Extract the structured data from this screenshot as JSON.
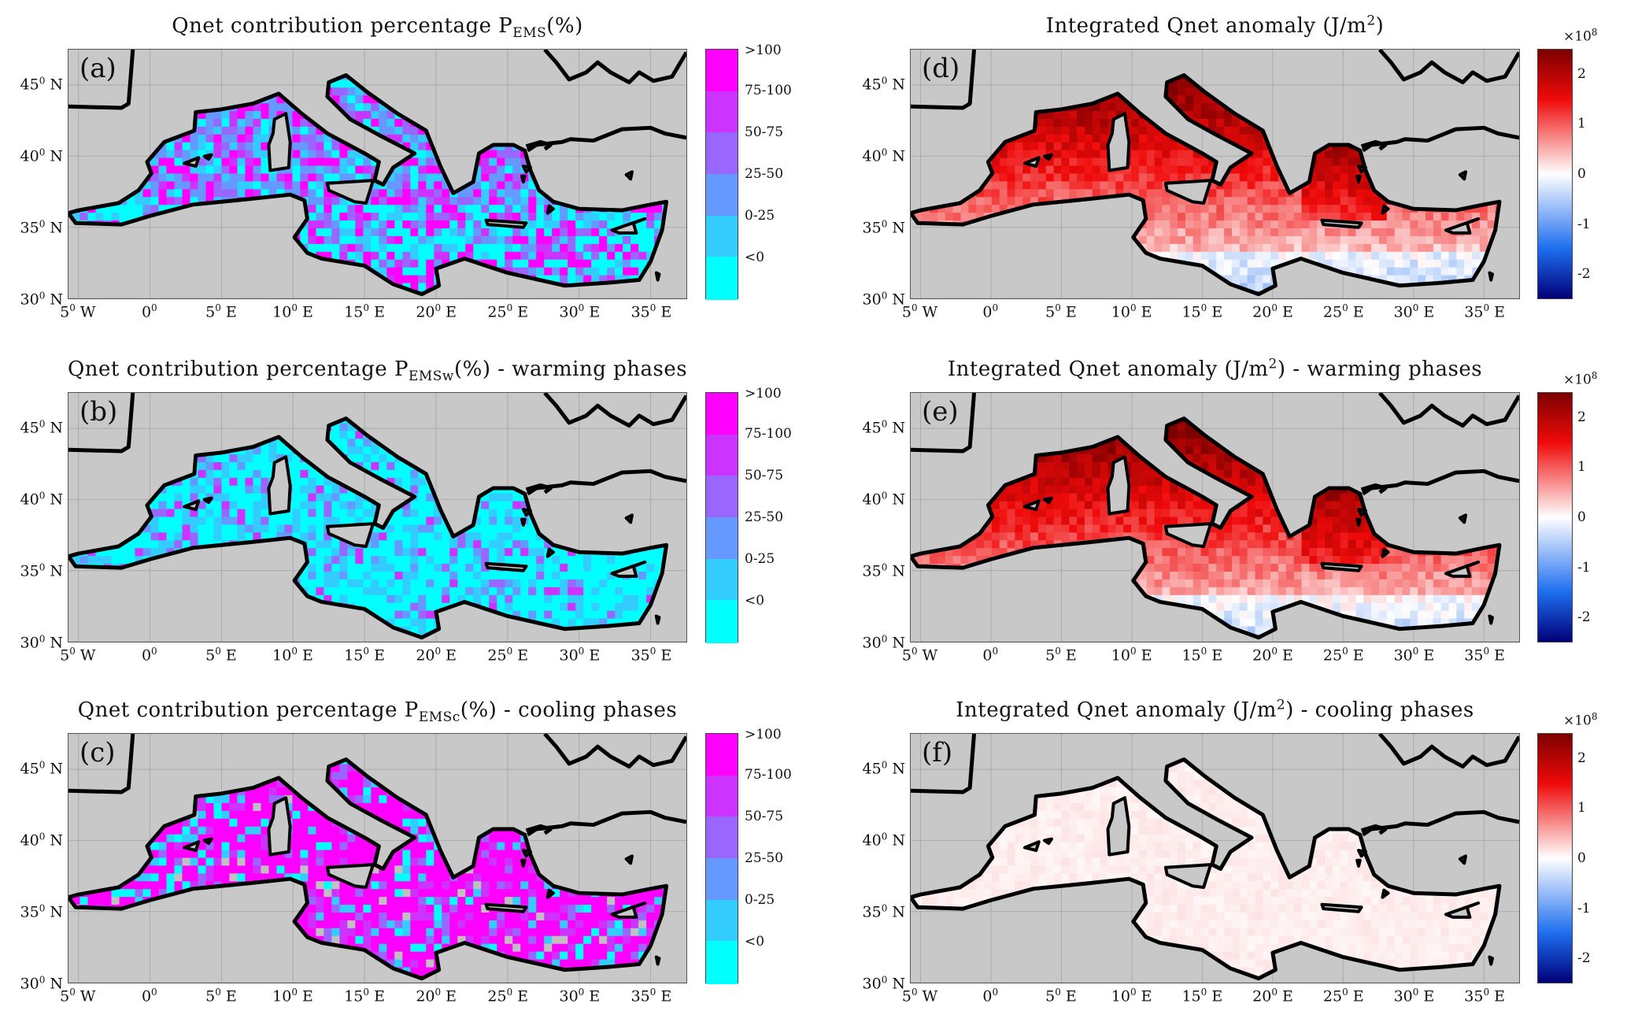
{
  "lon_ticks": [
    {
      "deg": "5",
      "hem": "W",
      "value": -5
    },
    {
      "deg": "0",
      "hem": "",
      "value": 0
    },
    {
      "deg": "5",
      "hem": "E",
      "value": 5
    },
    {
      "deg": "10",
      "hem": "E",
      "value": 10
    },
    {
      "deg": "15",
      "hem": "E",
      "value": 15
    },
    {
      "deg": "20",
      "hem": "E",
      "value": 20
    },
    {
      "deg": "25",
      "hem": "E",
      "value": 25
    },
    {
      "deg": "30",
      "hem": "E",
      "value": 30
    },
    {
      "deg": "35",
      "hem": "E",
      "value": 35
    }
  ],
  "lat_ticks": [
    {
      "deg": "30",
      "hem": "N",
      "value": 30
    },
    {
      "deg": "35",
      "hem": "N",
      "value": 35
    },
    {
      "deg": "40",
      "hem": "N",
      "value": 40
    },
    {
      "deg": "45",
      "hem": "N",
      "value": 45
    }
  ],
  "degree_symbol": "0",
  "extent": {
    "lon": [
      -5.7,
      37.5
    ],
    "lat": [
      30,
      47.5
    ]
  },
  "percent_colorbar": {
    "labels": [
      ">100",
      "75-100",
      "50-75",
      "25-50",
      "0-25",
      "<0"
    ],
    "colors": [
      "#ff00ff",
      "#cc33ff",
      "#9966ff",
      "#6699ff",
      "#33ccff",
      "#00ffff"
    ]
  },
  "anomaly_colorbar": {
    "ticks": [
      {
        "label": "2",
        "value": 2
      },
      {
        "label": "1",
        "value": 1
      },
      {
        "label": "0",
        "value": 0
      },
      {
        "label": "-1",
        "value": -1
      },
      {
        "label": "-2",
        "value": -2
      }
    ],
    "range": [
      -2.5,
      2.5
    ],
    "exponent_base": "×10",
    "exponent": "8"
  },
  "panels": [
    {
      "id": "a",
      "letter": "(a)",
      "kind": "pct",
      "mode": "all",
      "title": {
        "pre": "Qnet contribution percentage P",
        "sub": "EMS",
        "post": "(%)"
      }
    },
    {
      "id": "b",
      "letter": "(b)",
      "kind": "pct",
      "mode": "warm",
      "title": {
        "pre": "Qnet contribution percentage P",
        "sub": "EMSw",
        "post": "(%) - warming phases"
      }
    },
    {
      "id": "c",
      "letter": "(c)",
      "kind": "pct",
      "mode": "cool",
      "title": {
        "pre": "Qnet contribution percentage P",
        "sub": "EMSc",
        "post": "(%) - cooling phases"
      }
    },
    {
      "id": "d",
      "letter": "(d)",
      "kind": "anom",
      "mode": "all",
      "title": {
        "pre": "Integrated Qnet anomaly (J/m",
        "sup": "2",
        "post": ")"
      }
    },
    {
      "id": "e",
      "letter": "(e)",
      "kind": "anom",
      "mode": "warm",
      "title": {
        "pre": "Integrated Qnet anomaly (J/m",
        "sup": "2",
        "post": ") - warming phases"
      }
    },
    {
      "id": "f",
      "letter": "(f)",
      "kind": "anom",
      "mode": "cool",
      "title": {
        "pre": "Integrated Qnet anomaly (J/m",
        "sup": "2",
        "post": ") - cooling phases"
      }
    }
  ]
}
